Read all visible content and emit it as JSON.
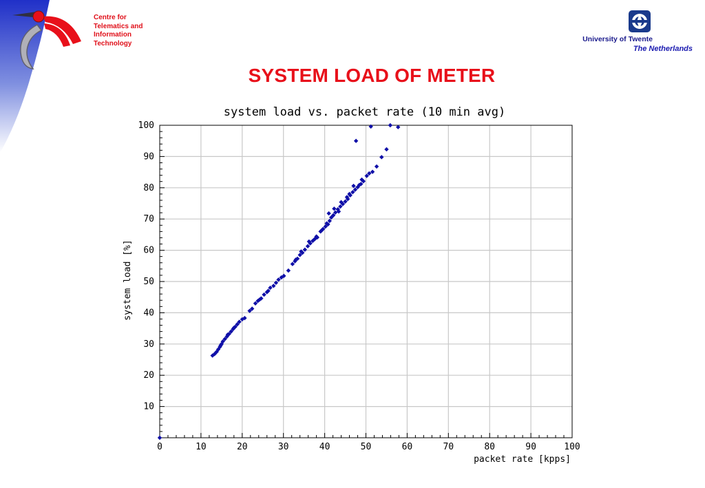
{
  "header": {
    "org_lines": [
      "Centre for",
      "Telematics and",
      "Information",
      "Technology"
    ],
    "university": "University of Twente",
    "country": "The Netherlands"
  },
  "slide_title": "SYSTEM LOAD OF METER",
  "colors": {
    "accent_red": "#e8101a",
    "brand_blue": "#1a1a8c",
    "point_blue": "#1010a8",
    "grid": "#c8c8c8"
  },
  "chart_data": {
    "type": "scatter",
    "title": "system load vs. packet rate (10 min avg)",
    "xlabel": "packet rate [kpps]",
    "ylabel": "system load [%]",
    "xlim": [
      0,
      100
    ],
    "ylim": [
      0,
      100
    ],
    "xticks": [
      0,
      10,
      20,
      30,
      40,
      50,
      60,
      70,
      80,
      90,
      100
    ],
    "yticks": [
      10,
      20,
      30,
      40,
      50,
      60,
      70,
      80,
      90,
      100
    ],
    "grid": true,
    "legend": "none",
    "series": [
      {
        "points": [
          [
            0,
            0
          ],
          [
            12.8,
            26.3
          ],
          [
            13.3,
            26.8
          ],
          [
            13.8,
            27.5
          ],
          [
            14.2,
            28.3
          ],
          [
            14.6,
            29.1
          ],
          [
            15.0,
            30.0
          ],
          [
            15.3,
            30.8
          ],
          [
            15.8,
            31.6
          ],
          [
            16.3,
            32.4
          ],
          [
            16.8,
            33.2
          ],
          [
            17.3,
            34.0
          ],
          [
            17.8,
            34.8
          ],
          [
            18.3,
            35.5
          ],
          [
            18.8,
            36.3
          ],
          [
            19.3,
            37.1
          ],
          [
            20.0,
            37.9
          ],
          [
            20.6,
            38.3
          ],
          [
            21.8,
            40.6
          ],
          [
            22.4,
            41.3
          ],
          [
            23.2,
            43.0
          ],
          [
            23.8,
            43.8
          ],
          [
            24.6,
            44.6
          ],
          [
            25.3,
            45.8
          ],
          [
            26.0,
            46.6
          ],
          [
            26.8,
            48.0
          ],
          [
            27.6,
            48.6
          ],
          [
            28.2,
            49.6
          ],
          [
            28.8,
            50.6
          ],
          [
            29.5,
            51.3
          ],
          [
            30.1,
            51.8
          ],
          [
            31.2,
            53.5
          ],
          [
            32.2,
            55.6
          ],
          [
            32.8,
            56.5
          ],
          [
            33.4,
            57.3
          ],
          [
            34.0,
            58.5
          ],
          [
            34.6,
            59.2
          ],
          [
            35.2,
            60.2
          ],
          [
            35.9,
            61.3
          ],
          [
            36.5,
            62.2
          ],
          [
            37.1,
            63.0
          ],
          [
            37.6,
            63.6
          ],
          [
            38.2,
            64.1
          ],
          [
            39.0,
            66.0
          ],
          [
            39.6,
            66.8
          ],
          [
            40.2,
            67.6
          ],
          [
            40.8,
            68.3
          ],
          [
            41.2,
            69.4
          ],
          [
            41.6,
            70.5
          ],
          [
            42.1,
            71.2
          ],
          [
            42.6,
            72.1
          ],
          [
            43.2,
            73.1
          ],
          [
            43.8,
            74.0
          ],
          [
            44.4,
            74.8
          ],
          [
            45.0,
            75.6
          ],
          [
            45.6,
            76.4
          ],
          [
            46.2,
            77.6
          ],
          [
            46.8,
            78.6
          ],
          [
            47.4,
            79.4
          ],
          [
            48.0,
            80.2
          ],
          [
            48.8,
            81.2
          ],
          [
            49.4,
            82.1
          ],
          [
            50.2,
            83.8
          ],
          [
            50.8,
            84.6
          ],
          [
            51.6,
            85.1
          ],
          [
            47.6,
            95.0
          ],
          [
            51.2,
            99.6
          ],
          [
            52.6,
            86.8
          ],
          [
            53.8,
            89.8
          ],
          [
            55.0,
            92.3
          ],
          [
            55.9,
            100.0
          ],
          [
            57.8,
            99.4
          ],
          [
            41.0,
            71.8
          ],
          [
            42.3,
            73.3
          ],
          [
            43.4,
            72.4
          ],
          [
            44.0,
            75.4
          ],
          [
            45.4,
            77.0
          ],
          [
            46.0,
            78.0
          ],
          [
            47.0,
            80.6
          ],
          [
            48.4,
            80.9
          ],
          [
            49.0,
            82.6
          ],
          [
            36.2,
            62.8
          ],
          [
            34.3,
            59.6
          ],
          [
            33.0,
            57.0
          ],
          [
            26.3,
            47.0
          ],
          [
            24.2,
            44.2
          ],
          [
            18.0,
            35.2
          ],
          [
            16.5,
            33.0
          ],
          [
            14.8,
            29.6
          ],
          [
            39.3,
            66.4
          ],
          [
            38.0,
            64.4
          ],
          [
            40.5,
            68.6
          ]
        ]
      }
    ]
  }
}
